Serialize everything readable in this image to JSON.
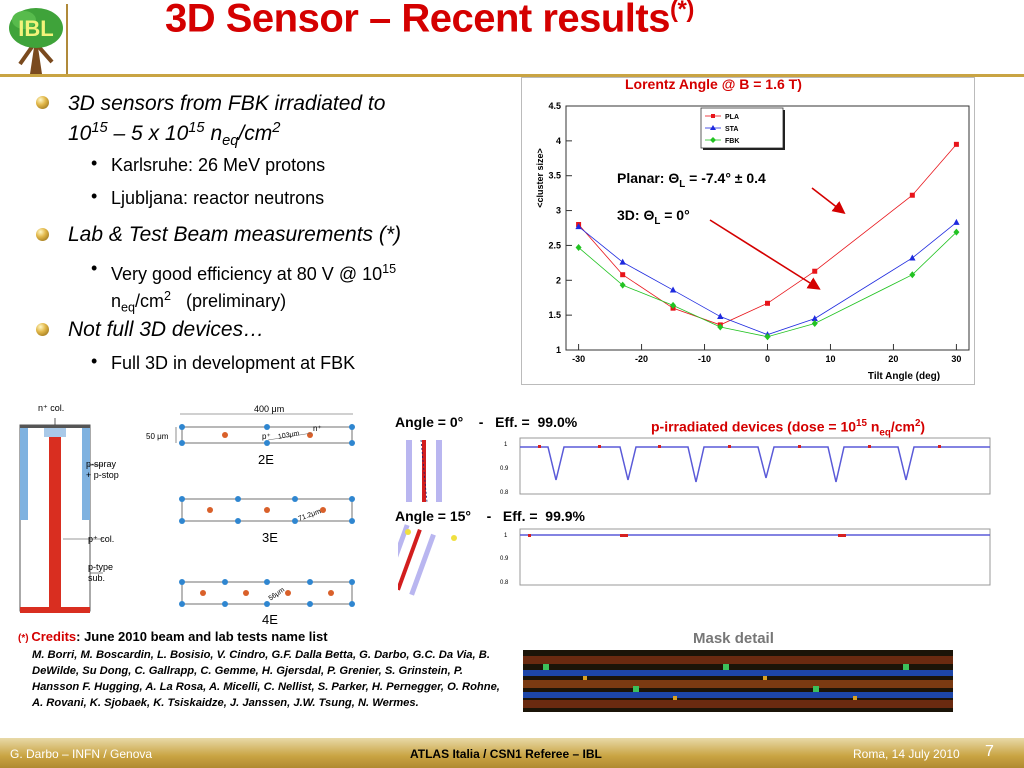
{
  "header": {
    "title": "3D Sensor – Recent results",
    "title_sup": "(*)",
    "logo_text": "IBL"
  },
  "bullets": [
    {
      "text_a": "3D sensors from FBK irradiated to",
      "text_b": "10",
      "sup1": "15",
      "text_c": " – 5 x 10",
      "sup2": "15",
      "text_d": " n",
      "sub": "eq",
      "text_e": "/cm",
      "sup3": "2"
    },
    {
      "sub_items": [
        "Karlsruhe: 26 MeV protons",
        "Ljubljana: reactor neutrons"
      ]
    },
    {
      "text": "Lab & Test Beam measurements (*)"
    },
    {
      "sub_text_a": "Very good efficiency at 80 V @ 10",
      "sub_sup": "15",
      "sub_text_b": "n",
      "sub_sub": "eq",
      "sub_text_c": "/cm",
      "sub_sup2": "2",
      "sub_text_d": "   (preliminary)"
    },
    {
      "text": "Not full 3D devices…"
    },
    {
      "sub_items": [
        "Full 3D in development at FBK"
      ]
    }
  ],
  "chart_data": {
    "type": "line",
    "title": "Lorentz Angle @ B = 1.6 T)",
    "xlabel": "Tilt Angle (deg)",
    "ylabel": "<cluster size>",
    "xlim": [
      -32,
      32
    ],
    "ylim": [
      1,
      4.5
    ],
    "x_ticks": [
      "-30",
      "-20",
      "-10",
      "0",
      "10",
      "20",
      "30"
    ],
    "y_ticks": [
      "1",
      "1.5",
      "2",
      "2.5",
      "3",
      "3.5",
      "4",
      "4.5"
    ],
    "legend_position": "top-center",
    "series": [
      {
        "name": "PLA",
        "color": "#e8141a",
        "marker": "square",
        "x": [
          -30,
          -23,
          -15,
          -7.5,
          0,
          7.5,
          23,
          30
        ],
        "values": [
          2.8,
          2.08,
          1.6,
          1.36,
          1.67,
          2.13,
          3.22,
          3.95
        ]
      },
      {
        "name": "STA",
        "color": "#1e2adf",
        "marker": "triangle",
        "x": [
          -30,
          -23,
          -15,
          -7.5,
          0,
          7.5,
          23,
          30
        ],
        "values": [
          2.77,
          2.26,
          1.86,
          1.48,
          1.22,
          1.45,
          2.32,
          2.83
        ]
      },
      {
        "name": "FBK",
        "color": "#22c322",
        "marker": "diamond",
        "x": [
          -30,
          -23,
          -15,
          -7.5,
          0,
          7.5,
          23,
          30
        ],
        "values": [
          2.47,
          1.93,
          1.64,
          1.33,
          1.19,
          1.38,
          2.08,
          2.69
        ]
      }
    ],
    "annotations": {
      "planar_label": "Planar: Θ",
      "planar_sub": "L",
      "planar_value": " = -7.4° ± 0.4",
      "three_d_label": "3D: Θ",
      "three_d_sub": "L",
      "three_d_value": " = 0°"
    }
  },
  "diagram": {
    "n_col": "n⁺ col.",
    "p_spray": "p-spray",
    "p_stop": "+ p-stop",
    "p_col": "p⁺ col.",
    "p_type": "p-type",
    "sub_label": "sub.",
    "width_label": "400 μm",
    "height_label": "50 μm",
    "config_2e": "2E",
    "config_3e": "3E",
    "config_4e": "4E",
    "dist_2e": "103μm",
    "dist_3e": "71.2μm",
    "dist_4e": "56μm",
    "n_plus": "n⁺",
    "p_plus": "p⁺"
  },
  "test_beam": {
    "angle0_label": "Angle = 0°    -   Eff. =  99.0%",
    "angle15_label": "Angle = 15°    -   Eff. =  99.9%",
    "irradiated_a": "p-irradiated devices (dose = 10",
    "irradiated_sup": "15",
    "irradiated_b": " n",
    "irradiated_sub": "eq",
    "irradiated_c": "/cm",
    "irradiated_sup2": "2",
    "irradiated_d": ")",
    "mask_label": "Mask  detail"
  },
  "credits": {
    "mark": "(*) ",
    "label": "Credits",
    "text": ": June 2010 beam and lab tests name list",
    "names": "M. Borri, M. Boscardin, L. Bosisio, V. Cindro, G.F. Dalla Betta, G. Darbo, G.C. Da Via, B. DeWilde, Su Dong, C. Gallrapp, C. Gemme, H. Gjersdal, P. Grenier, S. Grinstein, P. Hansson F. Hugging, A. La Rosa, A. Micelli, C. Nellist, S. Parker, H. Pernegger, O. Rohne, A. Rovani, K. Sjobaek, K. Tsiskaidze, J. Janssen, J.W. Tsung, N. Wermes."
  },
  "footer": {
    "left": "G. Darbo – INFN / Genova",
    "center": "ATLAS Italia / CSN1 Referee – IBL",
    "right": "Roma, 14 July 2010",
    "page": "7"
  },
  "colors": {
    "title": "#d40000",
    "accent": "#c9a443"
  }
}
